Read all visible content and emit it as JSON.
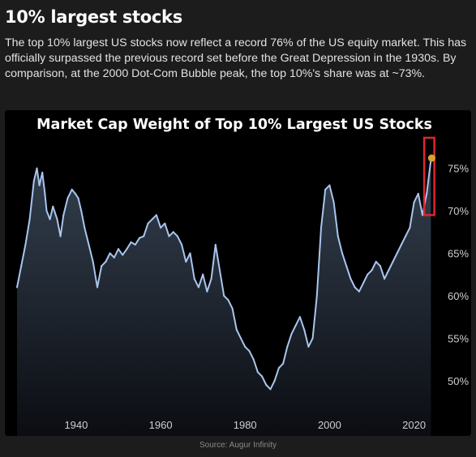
{
  "article": {
    "heading": "10% largest stocks",
    "body": "The top 10% largest US stocks now reflect a record 76% of the US equity market. This has officially surpassed the previous record set before the Great Depression in the 1930s. By comparison, at the 2000 Dot-Com Bubble peak, the top 10%'s share was at ~73%."
  },
  "source": "Source: Augur Infinity",
  "colors": {
    "line": "#a9c6ee",
    "fill_top": "#34404f",
    "fill_bottom": "#0b0d12",
    "highlight_box": "#e0262e",
    "current_point": "#d9a42a",
    "background": "#000000"
  },
  "chart_data": {
    "type": "area",
    "title": "Market Cap Weight of Top 10% Largest US Stocks",
    "xlabel": "",
    "ylabel": "",
    "xlim": [
      1926,
      2024.5
    ],
    "ylim": [
      47.5,
      78.5
    ],
    "x_ticks": [
      1940,
      1960,
      1980,
      2000,
      2020
    ],
    "y_ticks": [
      75,
      70,
      65,
      60,
      55,
      50
    ],
    "y_tick_labels": [
      "75%",
      "70%",
      "65%",
      "60%",
      "55%",
      "50%"
    ],
    "y_axis_side": "right",
    "grid": false,
    "legend": "none",
    "highlight": "box around the latest values (2023-2024)",
    "points": [
      [
        1926,
        61
      ],
      [
        1927,
        63.5
      ],
      [
        1928,
        66
      ],
      [
        1929,
        69
      ],
      [
        1930,
        73.5
      ],
      [
        1930.7,
        75
      ],
      [
        1931.3,
        73
      ],
      [
        1932,
        74.5
      ],
      [
        1932.6,
        72
      ],
      [
        1933,
        70
      ],
      [
        1933.8,
        69
      ],
      [
        1934.5,
        70.5
      ],
      [
        1935.5,
        69
      ],
      [
        1936.3,
        67
      ],
      [
        1937,
        69.5
      ],
      [
        1938,
        71.5
      ],
      [
        1939,
        72.5
      ],
      [
        1939.8,
        72
      ],
      [
        1940.5,
        71.5
      ],
      [
        1941.2,
        70
      ],
      [
        1942,
        68
      ],
      [
        1943,
        66
      ],
      [
        1944,
        64
      ],
      [
        1945,
        61
      ],
      [
        1946,
        63.5
      ],
      [
        1947,
        64
      ],
      [
        1948,
        65
      ],
      [
        1949,
        64.5
      ],
      [
        1950,
        65.5
      ],
      [
        1951,
        64.8
      ],
      [
        1952,
        65.5
      ],
      [
        1953,
        66.3
      ],
      [
        1954,
        66
      ],
      [
        1955,
        66.8
      ],
      [
        1956,
        67
      ],
      [
        1957,
        68.5
      ],
      [
        1958,
        69
      ],
      [
        1959,
        69.5
      ],
      [
        1960,
        68
      ],
      [
        1961,
        68.5
      ],
      [
        1962,
        67
      ],
      [
        1963,
        67.5
      ],
      [
        1964,
        67
      ],
      [
        1965,
        66
      ],
      [
        1966,
        64
      ],
      [
        1967,
        65
      ],
      [
        1968,
        62
      ],
      [
        1969,
        61
      ],
      [
        1970,
        62.5
      ],
      [
        1971,
        60.5
      ],
      [
        1972,
        62
      ],
      [
        1973,
        66
      ],
      [
        1974,
        63
      ],
      [
        1975,
        60
      ],
      [
        1976,
        59.5
      ],
      [
        1977,
        58.5
      ],
      [
        1978,
        56
      ],
      [
        1979,
        55
      ],
      [
        1980,
        54
      ],
      [
        1981,
        53.5
      ],
      [
        1982,
        52.5
      ],
      [
        1983,
        51
      ],
      [
        1984,
        50.5
      ],
      [
        1985,
        49.5
      ],
      [
        1986,
        49
      ],
      [
        1987,
        50
      ],
      [
        1988,
        51.5
      ],
      [
        1989,
        52
      ],
      [
        1990,
        54
      ],
      [
        1991,
        55.5
      ],
      [
        1992,
        56.5
      ],
      [
        1993,
        57.5
      ],
      [
        1994,
        56
      ],
      [
        1995,
        54
      ],
      [
        1996,
        55
      ],
      [
        1997,
        60
      ],
      [
        1998,
        68
      ],
      [
        1999,
        72.5
      ],
      [
        2000,
        73
      ],
      [
        2001,
        71
      ],
      [
        2002,
        67
      ],
      [
        2003,
        65
      ],
      [
        2004,
        63.5
      ],
      [
        2005,
        62
      ],
      [
        2006,
        61
      ],
      [
        2007,
        60.5
      ],
      [
        2008,
        61.5
      ],
      [
        2009,
        62.5
      ],
      [
        2010,
        63
      ],
      [
        2011,
        64
      ],
      [
        2012,
        63.5
      ],
      [
        2013,
        62
      ],
      [
        2014,
        63
      ],
      [
        2015,
        64
      ],
      [
        2016,
        65
      ],
      [
        2017,
        66
      ],
      [
        2018,
        67
      ],
      [
        2019,
        68
      ],
      [
        2020,
        71
      ],
      [
        2021,
        72
      ],
      [
        2022,
        69.5
      ],
      [
        2023,
        72
      ],
      [
        2024,
        76
      ]
    ],
    "current": {
      "x": 2024.2,
      "y": 76.2
    }
  }
}
